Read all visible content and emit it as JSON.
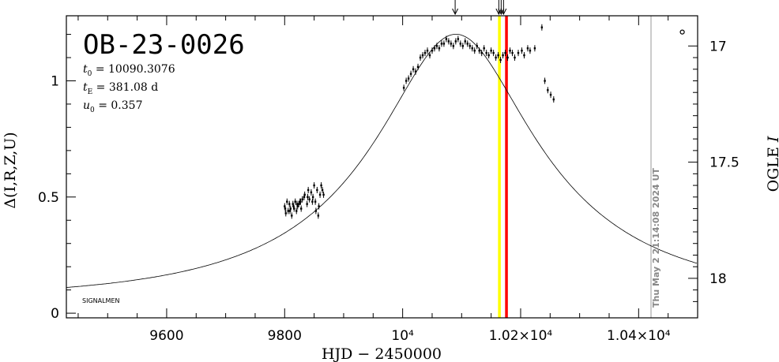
{
  "chart_data": {
    "type": "scatter",
    "title": "OB-23-0026",
    "params": [
      {
        "sym": "t",
        "sub": "0",
        "text": " = 10090.3076"
      },
      {
        "sym": "t",
        "sub": "E",
        "text": " = 381.08 d"
      },
      {
        "sym": "u",
        "sub": "0",
        "text": " = 0.357"
      }
    ],
    "xlabel": "HJD − 2450000",
    "ylabel_left": "Δ(I,R,Z,U)",
    "ylabel_right_prefix": "OGLE ",
    "ylabel_right_italic": "I",
    "corner_label": "SIGNALMEN",
    "timestamp": "Thu May  2 21:14:08 2024 UT",
    "xlim": [
      9430,
      10500
    ],
    "ylim": [
      -0.02,
      1.28
    ],
    "grid": false,
    "x_ticks": [
      {
        "value": 9600,
        "label": "9600"
      },
      {
        "value": 9800,
        "label": "9800"
      },
      {
        "value": 10000,
        "label": "10⁴"
      },
      {
        "value": 10200,
        "label": "1.02×10⁴"
      },
      {
        "value": 10400,
        "label": "1.04×10⁴"
      }
    ],
    "y_ticks_left": [
      {
        "value": 0,
        "label": "0"
      },
      {
        "value": 0.5,
        "label": "0.5"
      },
      {
        "value": 1,
        "label": "1"
      }
    ],
    "y_ticks_right": [
      {
        "value": 1.15,
        "label": "17"
      },
      {
        "value": 0.65,
        "label": "17.5"
      },
      {
        "value": 0.15,
        "label": "18"
      }
    ],
    "model": {
      "t0": 10090.3076,
      "tE": 381.08,
      "u0": 0.357,
      "base": 0.06,
      "amp": 0.59
    },
    "vlines": [
      {
        "x": 10164,
        "color": "#ffff00"
      },
      {
        "x": 10176,
        "color": "#ff0000"
      },
      {
        "x": 10421,
        "color": "#999999"
      }
    ],
    "top_arrows": [
      10089,
      10163,
      10167,
      10171
    ],
    "open_point": {
      "x": 10474,
      "y": 1.21
    },
    "series": [
      {
        "x": [
          9800,
          9802,
          9804,
          9806,
          9808,
          9810,
          9812,
          9814,
          9816,
          9818,
          9820,
          9822,
          9824,
          9826,
          9828,
          9830,
          9834,
          9838,
          9840,
          9842,
          9845,
          9848,
          9850,
          9852,
          9855,
          9858,
          9860,
          9862,
          9864,
          9866,
          9801,
          9809,
          9815,
          9821,
          9827,
          9833,
          9839,
          9847,
          9853,
          9857,
          10002,
          10006,
          10010,
          10014,
          10018,
          10022,
          10026,
          10030,
          10034,
          10038,
          10042,
          10046,
          10050,
          10054,
          10058,
          10062,
          10066,
          10070,
          10074,
          10078,
          10082,
          10086,
          10090,
          10094,
          10098,
          10102,
          10106,
          10110,
          10114,
          10118,
          10122,
          10126,
          10130,
          10134,
          10138,
          10142,
          10146,
          10150,
          10154,
          10158,
          10162,
          10166,
          10170,
          10174,
          10178,
          10182,
          10186,
          10190,
          10196,
          10202,
          10206,
          10212,
          10216,
          10224,
          10236,
          10241,
          10246,
          10251,
          10256
        ],
        "y": [
          0.46,
          0.43,
          0.48,
          0.44,
          0.47,
          0.45,
          0.42,
          0.47,
          0.45,
          0.48,
          0.44,
          0.46,
          0.47,
          0.48,
          0.45,
          0.49,
          0.51,
          0.47,
          0.53,
          0.49,
          0.52,
          0.5,
          0.55,
          0.48,
          0.53,
          0.46,
          0.51,
          0.55,
          0.53,
          0.51,
          0.45,
          0.44,
          0.46,
          0.47,
          0.48,
          0.5,
          0.5,
          0.48,
          0.44,
          0.42,
          0.97,
          1.0,
          1.01,
          1.03,
          1.05,
          1.04,
          1.06,
          1.1,
          1.11,
          1.12,
          1.13,
          1.11,
          1.13,
          1.14,
          1.15,
          1.14,
          1.16,
          1.16,
          1.18,
          1.17,
          1.16,
          1.15,
          1.17,
          1.18,
          1.16,
          1.15,
          1.17,
          1.16,
          1.15,
          1.14,
          1.13,
          1.15,
          1.13,
          1.12,
          1.14,
          1.12,
          1.11,
          1.13,
          1.12,
          1.1,
          1.11,
          1.09,
          1.11,
          1.12,
          1.1,
          1.13,
          1.12,
          1.1,
          1.12,
          1.13,
          1.11,
          1.14,
          1.13,
          1.14,
          1.23,
          1.0,
          0.96,
          0.94,
          0.92
        ]
      }
    ]
  }
}
